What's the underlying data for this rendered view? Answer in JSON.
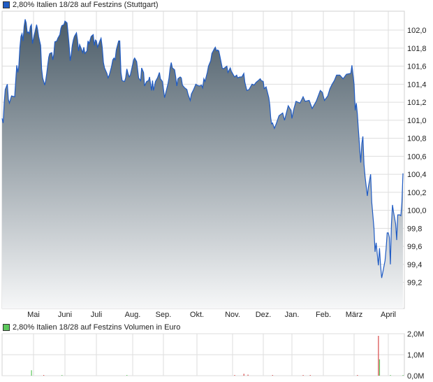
{
  "chart_data": [
    {
      "type": "area",
      "legend": "2,80% Italien 18/28 auf Festzins (Stuttgart)",
      "legend_placement": "top-left",
      "colors": {
        "line": "#1f5bc4",
        "fill_top": "#4b5c68",
        "fill_bottom": "#f6f7f8",
        "legend_swatch": "#1f5bc4",
        "grid": "#dddddd"
      },
      "grid": true,
      "ylim": [
        98.91,
        102.21
      ],
      "y_ticks": [
        {
          "value": 102.0,
          "label": "102,0"
        },
        {
          "value": 101.8,
          "label": "101,8"
        },
        {
          "value": 101.6,
          "label": "101,6"
        },
        {
          "value": 101.4,
          "label": "101,4"
        },
        {
          "value": 101.2,
          "label": "101,2"
        },
        {
          "value": 101.0,
          "label": "101,0"
        },
        {
          "value": 100.8,
          "label": "100,8"
        },
        {
          "value": 100.6,
          "label": "100,6"
        },
        {
          "value": 100.4,
          "label": "100,4"
        },
        {
          "value": 100.2,
          "label": "100,2"
        },
        {
          "value": 100.0,
          "label": "100,0"
        },
        {
          "value": 99.8,
          "label": "99,8"
        },
        {
          "value": 99.6,
          "label": "99,6"
        },
        {
          "value": 99.4,
          "label": "99,4"
        },
        {
          "value": 99.2,
          "label": "99,2"
        }
      ],
      "x_ticks": [
        "Mai",
        "Juni",
        "Juli",
        "Aug.",
        "Sep.",
        "Okt.",
        "Nov.",
        "Dez.",
        "Jan.",
        "Feb.",
        "März",
        "April"
      ],
      "x": [
        "01.04.",
        "02.04.",
        "03.04.",
        "04.04.",
        "06.04.",
        "07.04.",
        "08.04.",
        "10.04.",
        "13.04.",
        "14.04.",
        "15.04.",
        "16.04.",
        "17.04.",
        "18.04.",
        "19.04.",
        "20.04.",
        "21.04.",
        "22.04.",
        "23.04.",
        "24.04.",
        "25.04.",
        "26.04.",
        "27.04.",
        "28.04.",
        "29.04.",
        "30.04.",
        "01.05.",
        "02.05.",
        "04.05.",
        "05.05.",
        "06.05.",
        "07.05.",
        "08.05.",
        "09.05.",
        "10.05.",
        "12.05.",
        "13.05.",
        "14.05.",
        "15.05.",
        "16.05.",
        "17.05.",
        "19.05.",
        "20.05.",
        "21.05.",
        "22.05.",
        "24.05.",
        "25.05.",
        "27.05.",
        "28.05.",
        "29.05.",
        "31.05.",
        "01.06.",
        "03.06.",
        "04.06.",
        "05.06.",
        "06.06.",
        "07.06.",
        "08.06.",
        "09.06.",
        "10.06.",
        "12.06.",
        "13.06.",
        "14.06.",
        "15.06.",
        "16.06.",
        "18.06.",
        "19.06.",
        "20.06.",
        "22.06.",
        "23.06.",
        "24.06.",
        "26.06.",
        "28.06.",
        "29.06.",
        "30.06.",
        "01.07.",
        "02.07.",
        "04.07.",
        "05.07.",
        "06.07.",
        "07.07.",
        "08.07.",
        "10.07.",
        "11.07.",
        "12.07.",
        "14.07.",
        "15.07.",
        "16.07.",
        "17.07.",
        "18.07.",
        "20.07.",
        "21.07.",
        "22.07.",
        "23.07.",
        "25.07.",
        "26.07.",
        "27.07.",
        "28.07.",
        "29.07.",
        "30.07.",
        "01.08.",
        "02.08.",
        "03.08.",
        "05.08.",
        "07.08.",
        "09.08.",
        "10.08.",
        "12.08.",
        "13.08.",
        "15.08.",
        "17.08.",
        "18.08.",
        "20.08.",
        "21.08.",
        "22.08.",
        "24.08.",
        "26.08.",
        "28.08.",
        "29.08.",
        "31.08.",
        "01.09.",
        "02.09.",
        "04.09.",
        "05.09.",
        "06.09.",
        "07.09.",
        "08.09.",
        "09.09.",
        "11.09.",
        "12.09.",
        "13.09.",
        "14.09.",
        "16.09.",
        "17.09.",
        "18.09.",
        "20.09.",
        "22.09.",
        "23.09.",
        "25.09.",
        "26.09.",
        "28.09.",
        "30.09.",
        "01.10.",
        "03.10.",
        "05.10.",
        "06.10.",
        "07.10.",
        "08.10.",
        "10.10.",
        "11.10.",
        "13.10.",
        "14.10.",
        "16.10.",
        "17.10.",
        "18.10.",
        "19.10.",
        "20.10.",
        "21.10.",
        "23.10.",
        "24.10.",
        "25.10.",
        "27.10.",
        "28.10.",
        "30.10.",
        "31.10.",
        "01.11.",
        "03.11.",
        "05.11.",
        "06.11.",
        "08.11.",
        "10.11.",
        "11.11.",
        "12.11.",
        "13.11.",
        "15.11.",
        "17.11.",
        "19.11.",
        "20.11.",
        "22.11.",
        "24.11.",
        "26.11.",
        "28.11.",
        "29.11.",
        "01.12.",
        "02.12.",
        "04.12.",
        "05.12.",
        "07.12.",
        "08.12.",
        "09.12.",
        "10.12.",
        "11.12.",
        "13.12.",
        "15.12.",
        "18.12.",
        "22.12.",
        "24.12.",
        "28.12.",
        "31.12.",
        "01.01.",
        "03.01.",
        "05.01.",
        "09.01.",
        "12.01.",
        "14.01.",
        "18.01.",
        "21.01.",
        "25.01.",
        "29.01.",
        "31.01.",
        "02.02.",
        "05.02.",
        "07.02.",
        "09.02.",
        "11.02.",
        "13.02.",
        "16.02.",
        "19.02.",
        "22.02.",
        "26.02.",
        "27.02.",
        "01.03.",
        "02.03.",
        "03.03.",
        "04.03.",
        "05.03.",
        "07.03.",
        "08.03.",
        "09.03.",
        "10.03.",
        "11.03.",
        "13.03.",
        "14.03.",
        "16.03.",
        "17.03.",
        "19.03.",
        "20.03.",
        "21.03.",
        "23.03.",
        "24.03.",
        "25.03.",
        "26.03.",
        "27.03.",
        "29.03.",
        "30.03.",
        "31.03.",
        "01.04.",
        "02.04.",
        "03.04.",
        "04.04.",
        "05.04.",
        "06.04.",
        "08.04.",
        "09.04.",
        "10.04.",
        "12.04.",
        "13.04.",
        "14.04.",
        "15.04."
      ],
      "values": [
        101.02,
        100.97,
        101.19,
        101.34,
        101.4,
        101.23,
        101.19,
        101.27,
        101.26,
        101.44,
        101.61,
        101.53,
        101.61,
        101.81,
        101.93,
        101.96,
        101.88,
        102.04,
        102.12,
        102.08,
        101.97,
        101.98,
        101.96,
        102.04,
        102.06,
        101.85,
        101.91,
        101.96,
        102.06,
        102.01,
        101.93,
        101.88,
        101.83,
        101.57,
        101.47,
        101.39,
        101.44,
        101.52,
        101.61,
        101.7,
        101.74,
        101.75,
        101.67,
        101.73,
        101.87,
        101.88,
        101.91,
        101.95,
        102.02,
        102.05,
        102.06,
        102.1,
        102.08,
        101.96,
        101.83,
        101.66,
        101.73,
        101.83,
        101.89,
        101.93,
        101.97,
        101.89,
        101.77,
        101.84,
        101.81,
        101.75,
        101.81,
        101.74,
        101.77,
        101.88,
        101.85,
        101.93,
        101.95,
        101.83,
        101.89,
        101.88,
        101.81,
        101.88,
        101.91,
        101.81,
        101.64,
        101.58,
        101.52,
        101.47,
        101.5,
        101.6,
        101.67,
        101.69,
        101.67,
        101.78,
        101.88,
        101.88,
        101.53,
        101.44,
        101.43,
        101.47,
        101.57,
        101.52,
        101.48,
        101.5,
        101.62,
        101.67,
        101.69,
        101.65,
        101.47,
        101.44,
        101.58,
        101.53,
        101.38,
        101.43,
        101.44,
        101.48,
        101.33,
        101.44,
        101.33,
        101.43,
        101.47,
        101.53,
        101.46,
        101.43,
        101.35,
        101.25,
        101.35,
        101.4,
        101.47,
        101.58,
        101.64,
        101.58,
        101.56,
        101.48,
        101.38,
        101.46,
        101.48,
        101.47,
        101.39,
        101.36,
        101.34,
        101.29,
        101.22,
        101.29,
        101.34,
        101.4,
        101.39,
        101.38,
        101.39,
        101.36,
        101.46,
        101.43,
        101.53,
        101.6,
        101.66,
        101.74,
        101.79,
        101.81,
        101.77,
        101.78,
        101.77,
        101.71,
        101.58,
        101.57,
        101.58,
        101.6,
        101.53,
        101.58,
        101.54,
        101.52,
        101.48,
        101.5,
        101.47,
        101.48,
        101.48,
        101.5,
        101.52,
        101.42,
        101.33,
        101.34,
        101.38,
        101.4,
        101.39,
        101.42,
        101.44,
        101.46,
        101.44,
        101.43,
        101.35,
        101.37,
        101.33,
        101.25,
        101.17,
        101.03,
        100.96,
        100.97,
        100.91,
        100.96,
        101.05,
        101.08,
        101.0,
        101.16,
        101.11,
        101.02,
        101.13,
        101.21,
        101.19,
        101.26,
        101.21,
        101.22,
        101.13,
        101.21,
        101.33,
        101.31,
        101.22,
        101.27,
        101.35,
        101.4,
        101.44,
        101.5,
        101.5,
        101.46,
        101.51,
        101.52,
        101.61,
        101.4,
        101.11,
        101.19,
        101.07,
        100.88,
        100.53,
        100.74,
        100.82,
        100.51,
        100.37,
        100.16,
        100.26,
        100.4,
        100.09,
        99.8,
        99.54,
        99.64,
        99.39,
        99.58,
        99.39,
        99.25,
        99.31,
        99.44,
        99.57,
        99.75,
        99.75,
        99.7,
        99.4,
        99.85,
        100.06,
        99.98,
        99.85,
        99.67,
        99.95,
        99.95,
        99.94,
        100.09,
        100.41
      ]
    },
    {
      "type": "bar",
      "legend": "2,80% Italien 18/28 auf Festzins Volumen in Euro",
      "legend_placement": "top-left",
      "colors": {
        "up": "#5cc85c",
        "down": "#d94848",
        "legend_swatch": "#5cc85c"
      },
      "grid": true,
      "ylim": [
        0,
        2.0
      ],
      "y_unit": "M",
      "y_ticks": [
        {
          "value": 2.0,
          "label": "2,0M"
        },
        {
          "value": 1.0,
          "label": "1,0M"
        },
        {
          "value": 0.0,
          "label": "0,0M"
        }
      ],
      "bars": [
        {
          "x": "29.04.",
          "value": 0.26,
          "dir": "up"
        },
        {
          "x": "11.05.",
          "value": 0.03,
          "dir": "down"
        },
        {
          "x": "29.05.",
          "value": 0.01,
          "dir": "up"
        },
        {
          "x": "27.07.",
          "value": 0.02,
          "dir": "up"
        },
        {
          "x": "03.11.",
          "value": 0.02,
          "dir": "down"
        },
        {
          "x": "12.11.",
          "value": 0.09,
          "dir": "down"
        },
        {
          "x": "16.11.",
          "value": 0.05,
          "dir": "down"
        },
        {
          "x": "11.12.",
          "value": 0.02,
          "dir": "down"
        },
        {
          "x": "12.01.",
          "value": 0.02,
          "dir": "down"
        },
        {
          "x": "19.01.",
          "value": 0.02,
          "dir": "down"
        },
        {
          "x": "04.03.",
          "value": 0.02,
          "dir": "down"
        },
        {
          "x": "23.03.",
          "value": 1.9,
          "dir": "down"
        },
        {
          "x": "24.03.",
          "value": 0.78,
          "dir": "up"
        },
        {
          "x": "03.04.",
          "value": 0.02,
          "dir": "up"
        },
        {
          "x": "15.04.",
          "value": 0.02,
          "dir": "up"
        }
      ]
    }
  ]
}
